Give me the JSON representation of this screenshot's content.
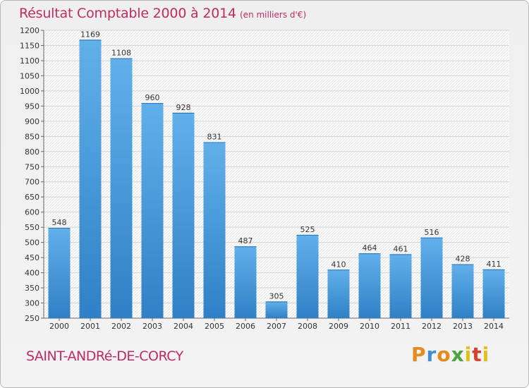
{
  "header": {
    "title": "Résultat Comptable 2000 à 2014",
    "unit": "(en milliers d'€)"
  },
  "footer": {
    "commune": "SAINT-ANDRé-DE-CORCY",
    "logo": "Proxiti"
  },
  "colors": {
    "title": "#c02a63",
    "bar_top": "#62b0ea",
    "bar_bottom": "#2f80c6"
  },
  "chart_data": {
    "type": "bar",
    "categories": [
      "2000",
      "2001",
      "2002",
      "2003",
      "2004",
      "2005",
      "2006",
      "2007",
      "2008",
      "2009",
      "2010",
      "2011",
      "2012",
      "2013",
      "2014"
    ],
    "values": [
      548,
      1169,
      1108,
      960,
      928,
      831,
      487,
      305,
      525,
      410,
      464,
      461,
      516,
      428,
      411
    ],
    "title": "Résultat Comptable 2000 à 2014",
    "xlabel": "",
    "ylabel": "",
    "ylim": [
      250,
      1200
    ],
    "yticks": [
      250,
      300,
      350,
      400,
      450,
      500,
      550,
      600,
      650,
      700,
      750,
      800,
      850,
      900,
      950,
      1000,
      1050,
      1100,
      1150,
      1200
    ],
    "grid": true,
    "data_labels": true
  }
}
